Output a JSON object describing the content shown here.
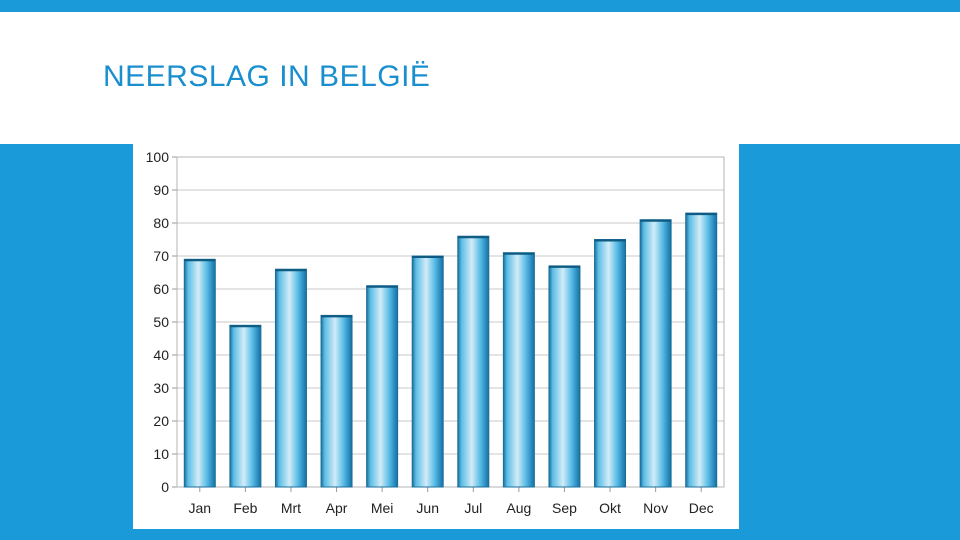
{
  "slide": {
    "title": "NEERSLAG IN BELGIË"
  },
  "colors": {
    "accent": "#1a9ad8",
    "title": "#1a8fd0",
    "bar_light": "#d2ecf7",
    "bar_mid": "#5bbde6",
    "bar_dark": "#1b6f9a",
    "grid": "#c8c8c8"
  },
  "chart_data": {
    "type": "bar",
    "categories": [
      "Jan",
      "Feb",
      "Mrt",
      "Apr",
      "Mei",
      "Jun",
      "Jul",
      "Aug",
      "Sep",
      "Okt",
      "Nov",
      "Dec"
    ],
    "values": [
      69,
      49,
      66,
      52,
      61,
      70,
      76,
      71,
      67,
      75,
      81,
      83
    ],
    "yticks": [
      "0",
      "10",
      "20",
      "30",
      "40",
      "50",
      "60",
      "70",
      "80",
      "90",
      "100"
    ],
    "ylim": [
      0,
      100
    ],
    "grid": true,
    "legend": "none"
  }
}
